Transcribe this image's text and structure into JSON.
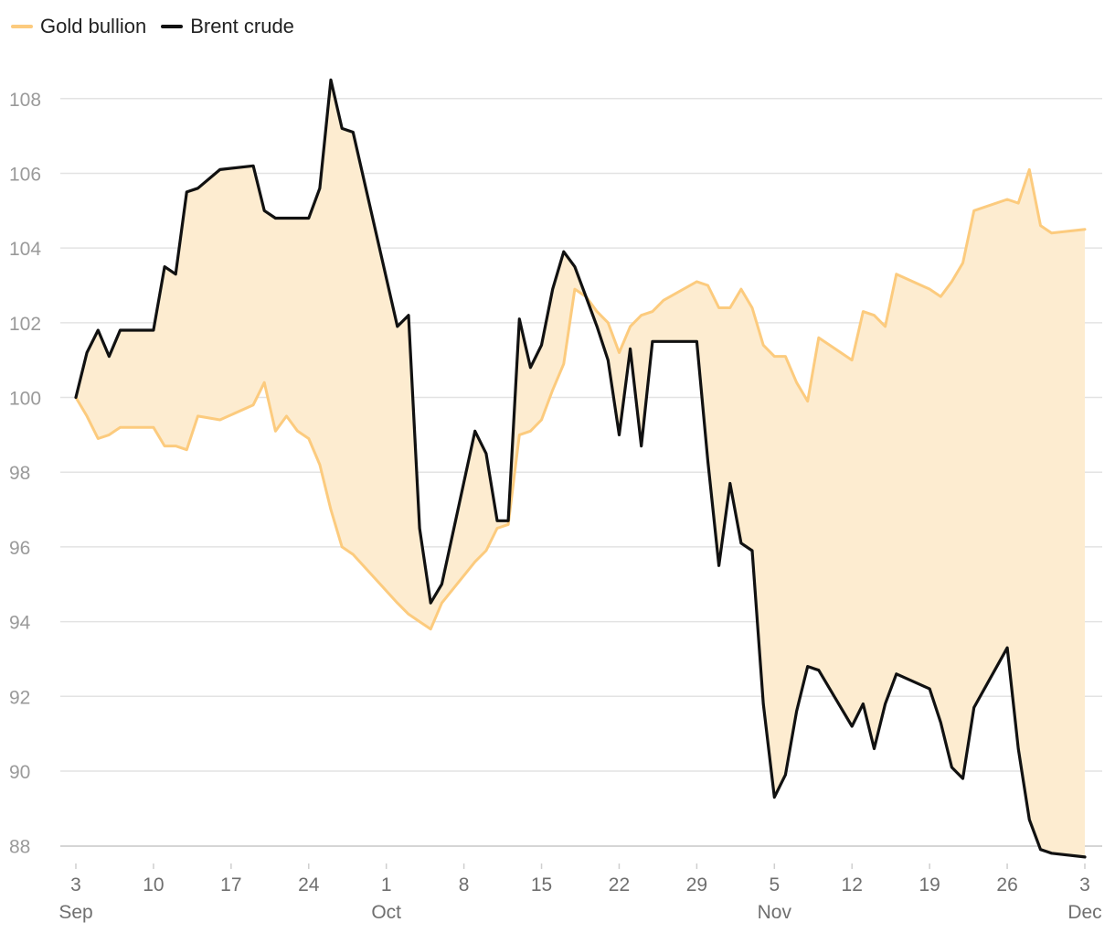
{
  "chart_data": {
    "type": "line",
    "title": "",
    "xlabel": "",
    "ylabel": "",
    "ylim": [
      87.6,
      108.9
    ],
    "yticks": [
      88,
      90,
      92,
      94,
      96,
      98,
      100,
      102,
      104,
      106,
      108
    ],
    "grid": true,
    "legend_position": "top-left",
    "fill_between_series": true,
    "fill_color": "#fdecd0",
    "xticks": [
      {
        "date": "2019-09-03",
        "day": "3",
        "month": "Sep"
      },
      {
        "date": "2019-09-10",
        "day": "10",
        "month": ""
      },
      {
        "date": "2019-09-17",
        "day": "17",
        "month": ""
      },
      {
        "date": "2019-09-24",
        "day": "24",
        "month": ""
      },
      {
        "date": "2019-10-01",
        "day": "1",
        "month": "Oct"
      },
      {
        "date": "2019-10-08",
        "day": "8",
        "month": ""
      },
      {
        "date": "2019-10-15",
        "day": "15",
        "month": ""
      },
      {
        "date": "2019-10-22",
        "day": "22",
        "month": ""
      },
      {
        "date": "2019-10-29",
        "day": "29",
        "month": ""
      },
      {
        "date": "2019-11-05",
        "day": "5",
        "month": "Nov"
      },
      {
        "date": "2019-11-12",
        "day": "12",
        "month": ""
      },
      {
        "date": "2019-11-19",
        "day": "19",
        "month": ""
      },
      {
        "date": "2019-11-26",
        "day": "26",
        "month": ""
      },
      {
        "date": "2019-12-03",
        "day": "3",
        "month": "Dec"
      }
    ],
    "x": [
      "2019-09-03",
      "2019-09-04",
      "2019-09-05",
      "2019-09-06",
      "2019-09-07",
      "2019-09-09",
      "2019-09-10",
      "2019-09-11",
      "2019-09-12",
      "2019-09-13",
      "2019-09-14",
      "2019-09-16",
      "2019-09-19",
      "2019-09-20",
      "2019-09-21",
      "2019-09-22",
      "2019-09-23",
      "2019-09-24",
      "2019-09-25",
      "2019-09-26",
      "2019-09-27",
      "2019-09-28",
      "2019-10-02",
      "2019-10-03",
      "2019-10-04",
      "2019-10-05",
      "2019-10-06",
      "2019-10-09",
      "2019-10-10",
      "2019-10-11",
      "2019-10-12",
      "2019-10-13",
      "2019-10-14",
      "2019-10-15",
      "2019-10-16",
      "2019-10-17",
      "2019-10-18",
      "2019-10-19",
      "2019-10-20",
      "2019-10-21",
      "2019-10-22",
      "2019-10-23",
      "2019-10-24",
      "2019-10-25",
      "2019-10-26",
      "2019-10-29",
      "2019-10-30",
      "2019-10-31",
      "2019-11-01",
      "2019-11-02",
      "2019-11-03",
      "2019-11-04",
      "2019-11-05",
      "2019-11-06",
      "2019-11-07",
      "2019-11-08",
      "2019-11-09",
      "2019-11-12",
      "2019-11-13",
      "2019-11-14",
      "2019-11-15",
      "2019-11-16",
      "2019-11-19",
      "2019-11-20",
      "2019-11-21",
      "2019-11-22",
      "2019-11-23",
      "2019-11-26",
      "2019-11-27",
      "2019-11-28",
      "2019-11-29",
      "2019-11-30",
      "2019-12-03"
    ],
    "series": [
      {
        "name": "Gold bullion",
        "color": "#fccb7e",
        "values": [
          100.0,
          99.5,
          98.9,
          99.0,
          99.2,
          99.2,
          99.2,
          98.7,
          98.7,
          98.6,
          99.5,
          99.4,
          99.8,
          100.4,
          99.1,
          99.5,
          99.1,
          98.9,
          98.2,
          97.0,
          96.0,
          95.8,
          94.5,
          94.2,
          94.0,
          93.8,
          94.5,
          95.6,
          95.9,
          96.5,
          96.6,
          99.0,
          99.1,
          99.4,
          100.2,
          100.9,
          102.9,
          102.7,
          102.3,
          102.0,
          101.2,
          101.9,
          102.2,
          102.3,
          102.6,
          103.1,
          103.0,
          102.4,
          102.4,
          102.9,
          102.4,
          101.4,
          101.1,
          101.1,
          100.4,
          99.9,
          101.6,
          101.0,
          102.3,
          102.2,
          101.9,
          103.3,
          102.9,
          102.7,
          103.1,
          103.6,
          105.0,
          105.3,
          105.2,
          106.1,
          104.6,
          104.4,
          104.5
        ]
      },
      {
        "name": "Brent crude",
        "color": "#111111",
        "values": [
          100.0,
          101.2,
          101.8,
          101.1,
          101.8,
          101.8,
          101.8,
          103.5,
          103.3,
          105.5,
          105.6,
          106.1,
          106.2,
          105.0,
          104.8,
          104.8,
          104.8,
          104.8,
          105.6,
          108.5,
          107.2,
          107.1,
          101.9,
          102.2,
          96.5,
          94.5,
          95.0,
          99.1,
          98.5,
          96.7,
          96.7,
          102.1,
          100.8,
          101.4,
          102.9,
          103.9,
          103.5,
          102.7,
          101.9,
          101.0,
          99.0,
          101.3,
          98.7,
          101.5,
          101.5,
          101.5,
          98.3,
          95.5,
          97.7,
          96.1,
          95.9,
          91.8,
          89.3,
          89.9,
          91.6,
          92.8,
          92.7,
          91.2,
          91.8,
          90.6,
          91.8,
          92.6,
          92.2,
          91.3,
          90.1,
          89.8,
          91.7,
          93.3,
          90.6,
          88.7,
          87.9,
          87.8,
          87.7
        ]
      }
    ]
  }
}
